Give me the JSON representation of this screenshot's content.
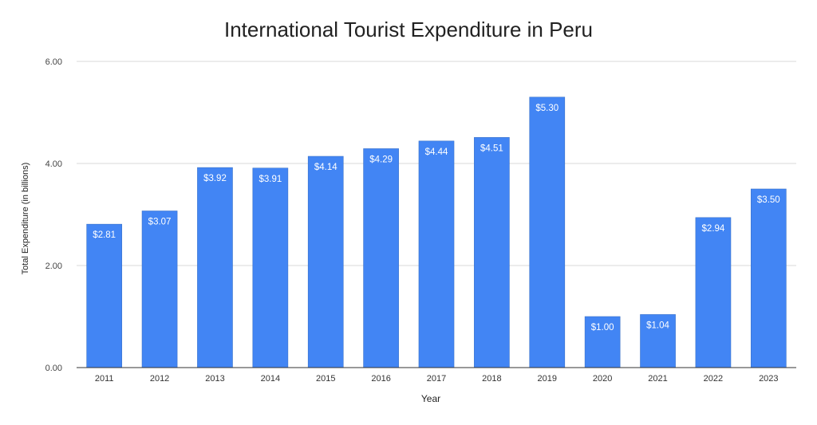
{
  "chart_data": {
    "type": "bar",
    "title": "International Tourist Expenditure in Peru",
    "xlabel": "Year",
    "ylabel": "Total Expenditure (in billions)",
    "ylim": [
      0,
      6
    ],
    "yticks": [
      0,
      2,
      4,
      6
    ],
    "ytick_labels": [
      "0.00",
      "2.00",
      "4.00",
      "6.00"
    ],
    "grid": true,
    "legend": "none",
    "bar_color": "#4285f4",
    "categories": [
      "2011",
      "2012",
      "2013",
      "2014",
      "2015",
      "2016",
      "2017",
      "2018",
      "2019",
      "2020",
      "2021",
      "2022",
      "2023"
    ],
    "values": [
      2.81,
      3.07,
      3.92,
      3.91,
      4.14,
      4.29,
      4.44,
      4.51,
      5.3,
      1.0,
      1.04,
      2.94,
      3.5
    ],
    "data_labels": [
      "$2.81",
      "$3.07",
      "$3.92",
      "$3.91",
      "$4.14",
      "$4.29",
      "$4.44",
      "$4.51",
      "$5.30",
      "$1.00",
      "$1.04",
      "$2.94",
      "$3.50"
    ]
  }
}
